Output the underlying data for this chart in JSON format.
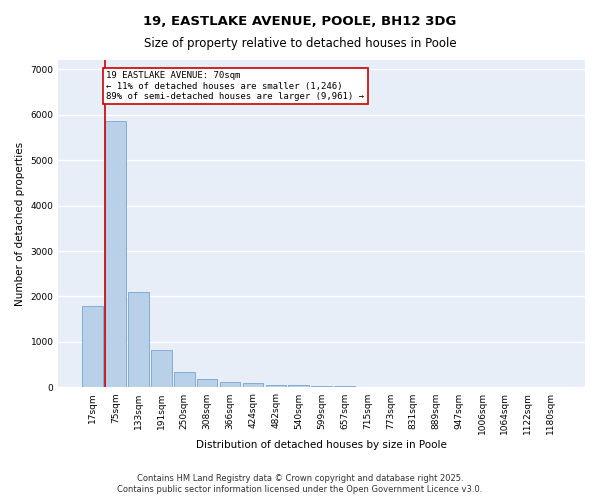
{
  "title": "19, EASTLAKE AVENUE, POOLE, BH12 3DG",
  "subtitle": "Size of property relative to detached houses in Poole",
  "xlabel": "Distribution of detached houses by size in Poole",
  "ylabel": "Number of detached properties",
  "categories": [
    "17sqm",
    "75sqm",
    "133sqm",
    "191sqm",
    "250sqm",
    "308sqm",
    "366sqm",
    "424sqm",
    "482sqm",
    "540sqm",
    "599sqm",
    "657sqm",
    "715sqm",
    "773sqm",
    "831sqm",
    "889sqm",
    "947sqm",
    "1006sqm",
    "1064sqm",
    "1122sqm",
    "1180sqm"
  ],
  "values": [
    1800,
    5850,
    2100,
    820,
    340,
    195,
    125,
    90,
    65,
    50,
    40,
    30,
    0,
    0,
    0,
    0,
    0,
    0,
    0,
    0,
    0
  ],
  "bar_color": "#b8d0e8",
  "bar_edge_color": "#6699cc",
  "marker_line_color": "#cc0000",
  "annotation_box_text": "19 EASTLAKE AVENUE: 70sqm\n← 11% of detached houses are smaller (1,246)\n89% of semi-detached houses are larger (9,961) →",
  "annotation_box_color": "#cc0000",
  "ylim": [
    0,
    7200
  ],
  "yticks": [
    0,
    1000,
    2000,
    3000,
    4000,
    5000,
    6000,
    7000
  ],
  "bg_color": "#e8eef8",
  "grid_color": "#ffffff",
  "footer_line1": "Contains HM Land Registry data © Crown copyright and database right 2025.",
  "footer_line2": "Contains public sector information licensed under the Open Government Licence v3.0.",
  "title_fontsize": 9.5,
  "subtitle_fontsize": 8.5,
  "axis_label_fontsize": 7.5,
  "tick_fontsize": 6.5,
  "annotation_fontsize": 6.5,
  "footer_fontsize": 6
}
